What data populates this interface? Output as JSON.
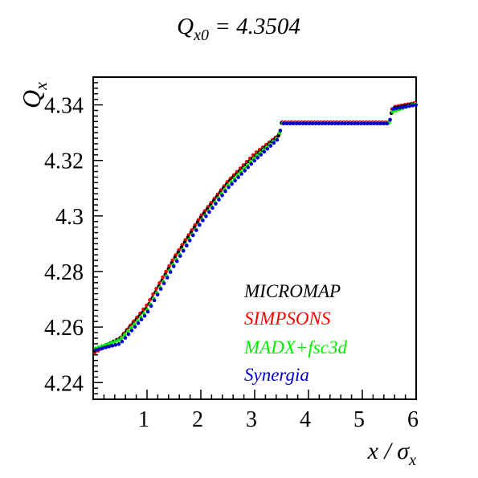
{
  "chart_data": {
    "type": "scatter",
    "title": {
      "main": "Q",
      "sub": "x0",
      "rest": " = 4.3504"
    },
    "ylabel": {
      "main": "Q",
      "sub": "x"
    },
    "xlabel": {
      "pre": "x / σ",
      "sub": "x"
    },
    "xlim": [
      0,
      6
    ],
    "ylim": [
      4.234,
      4.35
    ],
    "xticks": [
      1,
      2,
      3,
      4,
      5,
      6
    ],
    "yticks": [
      4.24,
      4.26,
      4.28,
      4.3,
      4.32,
      4.34
    ],
    "ytick_labels": [
      "4.24",
      "4.26",
      "4.28",
      "4.3",
      "4.32",
      "4.34"
    ],
    "grid": false,
    "legend_position": "bottom-right",
    "series": [
      {
        "name": "MICROMAP",
        "color": "#000000",
        "points": [
          [
            0.0,
            4.2512
          ],
          [
            0.5,
            4.256
          ],
          [
            1.0,
            4.267
          ],
          [
            1.5,
            4.2845
          ],
          [
            2.0,
            4.2995
          ],
          [
            2.5,
            4.312
          ],
          [
            3.0,
            4.3215
          ],
          [
            3.45,
            4.329
          ],
          [
            3.5,
            4.3335
          ],
          [
            4.0,
            4.3335
          ],
          [
            4.5,
            4.3335
          ],
          [
            5.0,
            4.3335
          ],
          [
            5.5,
            4.3335
          ],
          [
            5.56,
            4.3388
          ],
          [
            6.0,
            4.3405
          ]
        ]
      },
      {
        "name": "SIMPSONS",
        "color": "#ff0000",
        "points": [
          [
            0.0,
            4.2505
          ],
          [
            0.5,
            4.256
          ],
          [
            1.0,
            4.268
          ],
          [
            1.5,
            4.285
          ],
          [
            2.0,
            4.3
          ],
          [
            2.5,
            4.3125
          ],
          [
            3.0,
            4.3225
          ],
          [
            3.45,
            4.3292
          ],
          [
            3.5,
            4.3338
          ],
          [
            4.0,
            4.3338
          ],
          [
            4.5,
            4.3338
          ],
          [
            5.0,
            4.3338
          ],
          [
            5.5,
            4.3338
          ],
          [
            5.56,
            4.3392
          ],
          [
            6.0,
            4.3408
          ]
        ]
      },
      {
        "name": "MADX+fsc3d",
        "color": "#00ee00",
        "points": [
          [
            0.0,
            4.252
          ],
          [
            0.5,
            4.2555
          ],
          [
            1.0,
            4.266
          ],
          [
            1.5,
            4.283
          ],
          [
            2.0,
            4.298
          ],
          [
            2.5,
            4.311
          ],
          [
            3.0,
            4.321
          ],
          [
            3.45,
            4.3285
          ],
          [
            3.5,
            4.3335
          ],
          [
            4.0,
            4.3335
          ],
          [
            4.5,
            4.3335
          ],
          [
            5.0,
            4.3335
          ],
          [
            5.5,
            4.3335
          ],
          [
            5.56,
            4.3375
          ],
          [
            6.0,
            4.3405
          ]
        ]
      },
      {
        "name": "Synergia",
        "color": "#0000cc",
        "points": [
          [
            0.0,
            4.2515
          ],
          [
            0.5,
            4.254
          ],
          [
            1.0,
            4.265
          ],
          [
            1.5,
            4.282
          ],
          [
            2.0,
            4.2975
          ],
          [
            2.5,
            4.31
          ],
          [
            3.0,
            4.32
          ],
          [
            3.45,
            4.328
          ],
          [
            3.5,
            4.3333
          ],
          [
            4.0,
            4.3333
          ],
          [
            4.5,
            4.3333
          ],
          [
            5.0,
            4.3333
          ],
          [
            5.5,
            4.3333
          ],
          [
            5.56,
            4.3385
          ],
          [
            6.0,
            4.34
          ]
        ]
      }
    ]
  }
}
